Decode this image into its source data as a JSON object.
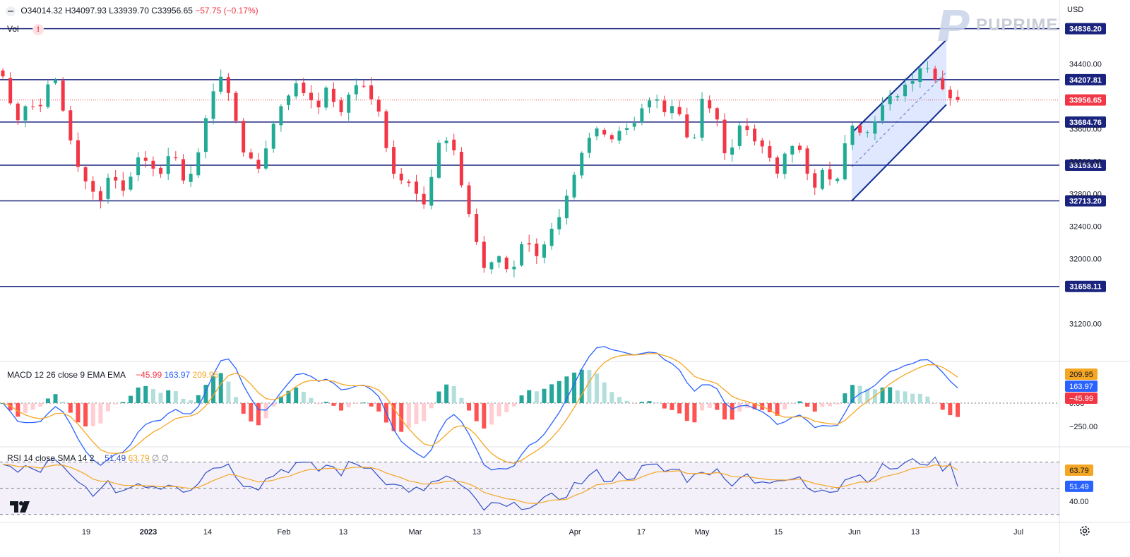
{
  "header": {
    "open": "O34014.32",
    "high": "H34097.93",
    "low": "L33939.70",
    "close": "C33956.65",
    "change": "−57.75 (−0.17%)",
    "vol_label": "Vol",
    "vol_warning": "!"
  },
  "currency": "USD",
  "brand": "PUPRIME",
  "macd": {
    "label": "MACD 12 26 close 9 EMA EMA",
    "hist_value": "−45.99",
    "macd_value": "163.97",
    "signal_value": "209.95"
  },
  "rsi": {
    "label": "RSI 14 close SMA 14 2",
    "rsi_value": "51.49",
    "sma_value": "63.79",
    "extra1": "∅",
    "extra2": "∅"
  },
  "colors": {
    "up": "#22ab94",
    "down": "#f23645",
    "level_line": "#1a237e",
    "channel": "#0d2a8f",
    "macd_line": "#2962ff",
    "signal_line": "#f5a623",
    "rsi_line": "#3450c7",
    "rsi_sma": "#f5a623"
  },
  "chart_data": [
    {
      "type": "candlestick",
      "title": "",
      "price_axis_ticks": [
        34400,
        33600,
        33200,
        32800,
        32400,
        32000,
        31200
      ],
      "price_axis_tick_labels": [
        "34400.00",
        "33600.00",
        "33200.00",
        "32800.00",
        "32400.00",
        "32000.00",
        "31200.00"
      ],
      "ylim": [
        30750,
        35190
      ],
      "x_tick_labels": [
        "19",
        "2023",
        "14",
        "Feb",
        "13",
        "Mar",
        "13",
        "Apr",
        "17",
        "May",
        "15",
        "Jun",
        "13",
        "Jul"
      ],
      "horizontal_levels": [
        {
          "value": 34836.2,
          "label": "34836.20"
        },
        {
          "value": 34207.81,
          "label": "34207.81"
        },
        {
          "value": 33684.76,
          "label": "33684.76"
        },
        {
          "value": 33153.01,
          "label": "33153.01"
        },
        {
          "value": 32713.2,
          "label": "32713.20"
        },
        {
          "value": 31658.11,
          "label": "31658.11"
        }
      ],
      "last_price": {
        "value": 33956.65,
        "label": "33956.65"
      },
      "close_path": [
        {
          "d": "Dec 15",
          "c": 34250
        },
        {
          "d": "Dec 16",
          "c": 33700
        },
        {
          "d": "Dec 19",
          "c": 33950
        },
        {
          "d": "Dec 20",
          "c": 33820
        },
        {
          "d": "Dec 21",
          "c": 34350
        },
        {
          "d": "Dec 22",
          "c": 33800
        },
        {
          "d": "Dec 23",
          "c": 33250
        },
        {
          "d": "Dec 27",
          "c": 32850
        },
        {
          "d": "Dec 28",
          "c": 32750
        },
        {
          "d": "Dec 29",
          "c": 33100
        },
        {
          "d": "Dec 30",
          "c": 32800
        },
        {
          "d": "Jan 03",
          "c": 33250
        },
        {
          "d": "Jan 04",
          "c": 33200
        },
        {
          "d": "Jan 05",
          "c": 33100
        },
        {
          "d": "Jan 06",
          "c": 33250
        },
        {
          "d": "Jan 09",
          "c": 33000
        },
        {
          "d": "Jan 10",
          "c": 33100
        },
        {
          "d": "Jan 12",
          "c": 33950
        },
        {
          "d": "Jan 13",
          "c": 34250
        },
        {
          "d": "Jan 17",
          "c": 33900
        },
        {
          "d": "Jan 18",
          "c": 33300
        },
        {
          "d": "Jan 19",
          "c": 33050
        },
        {
          "d": "Jan 23",
          "c": 33500
        },
        {
          "d": "Jan 25",
          "c": 33900
        },
        {
          "d": "Jan 27",
          "c": 34150
        },
        {
          "d": "Feb 01",
          "c": 34050
        },
        {
          "d": "Feb 03",
          "c": 33900
        },
        {
          "d": "Feb 06",
          "c": 34100
        },
        {
          "d": "Feb 09",
          "c": 33750
        },
        {
          "d": "Feb 13",
          "c": 34200
        },
        {
          "d": "Feb 15",
          "c": 34100
        },
        {
          "d": "Feb 17",
          "c": 33850
        },
        {
          "d": "Feb 21",
          "c": 33150
        },
        {
          "d": "Feb 23",
          "c": 33000
        },
        {
          "d": "Feb 27",
          "c": 32900
        },
        {
          "d": "Mar 01",
          "c": 32700
        },
        {
          "d": "Mar 03",
          "c": 33400
        },
        {
          "d": "Mar 06",
          "c": 33450
        },
        {
          "d": "Mar 08",
          "c": 32900
        },
        {
          "d": "Mar 10",
          "c": 32300
        },
        {
          "d": "Mar 13",
          "c": 31800
        },
        {
          "d": "Mar 15",
          "c": 32050
        },
        {
          "d": "Mar 17",
          "c": 31800
        },
        {
          "d": "Mar 20",
          "c": 32250
        },
        {
          "d": "Mar 22",
          "c": 32050
        },
        {
          "d": "Mar 24",
          "c": 32250
        },
        {
          "d": "Mar 27",
          "c": 32450
        },
        {
          "d": "Mar 29",
          "c": 32850
        },
        {
          "d": "Mar 31",
          "c": 33300
        },
        {
          "d": "Apr 03",
          "c": 33600
        },
        {
          "d": "Apr 05",
          "c": 33500
        },
        {
          "d": "Apr 10",
          "c": 33600
        },
        {
          "d": "Apr 12",
          "c": 33650
        },
        {
          "d": "Apr 14",
          "c": 33900
        },
        {
          "d": "Apr 18",
          "c": 33950
        },
        {
          "d": "Apr 20",
          "c": 33800
        },
        {
          "d": "Apr 24",
          "c": 33850
        },
        {
          "d": "Apr 26",
          "c": 33300
        },
        {
          "d": "Apr 28",
          "c": 34100
        },
        {
          "d": "May 02",
          "c": 33700
        },
        {
          "d": "May 04",
          "c": 33150
        },
        {
          "d": "May 08",
          "c": 33650
        },
        {
          "d": "May 10",
          "c": 33550
        },
        {
          "d": "May 12",
          "c": 33300
        },
        {
          "d": "May 16",
          "c": 33050
        },
        {
          "d": "May 18",
          "c": 33500
        },
        {
          "d": "May 22",
          "c": 33300
        },
        {
          "d": "May 24",
          "c": 32800
        },
        {
          "d": "May 26",
          "c": 33100
        },
        {
          "d": "May 31",
          "c": 32900
        },
        {
          "d": "Jun 02",
          "c": 33750
        },
        {
          "d": "Jun 05",
          "c": 33600
        },
        {
          "d": "Jun 07",
          "c": 33650
        },
        {
          "d": "Jun 09",
          "c": 33900
        },
        {
          "d": "Jun 12",
          "c": 34050
        },
        {
          "d": "Jun 14",
          "c": 34200
        },
        {
          "d": "Jun 15",
          "c": 34400
        },
        {
          "d": "Jun 16",
          "c": 34300
        },
        {
          "d": "Jun 20",
          "c": 34050
        },
        {
          "d": "Jun 21",
          "c": 33956.65
        }
      ],
      "channel": {
        "lower_start": 32713,
        "lower_end": 33900,
        "upper_start": 33550,
        "upper_end": 34700
      }
    },
    {
      "type": "line",
      "title": "MACD 12 26 close 9 EMA EMA",
      "tick_labels": [
        "0.00",
        "−250.00"
      ],
      "ylim": [
        -450,
        420
      ],
      "current": {
        "histogram": -45.99,
        "macd": 163.97,
        "signal": 209.95
      }
    },
    {
      "type": "line",
      "title": "RSI 14 close SMA 14 2",
      "tick_labels": [
        "40.00"
      ],
      "levels": [
        70,
        50,
        30
      ],
      "ylim": [
        25,
        80
      ],
      "current": {
        "rsi": 51.49,
        "sma": 63.79
      }
    }
  ]
}
